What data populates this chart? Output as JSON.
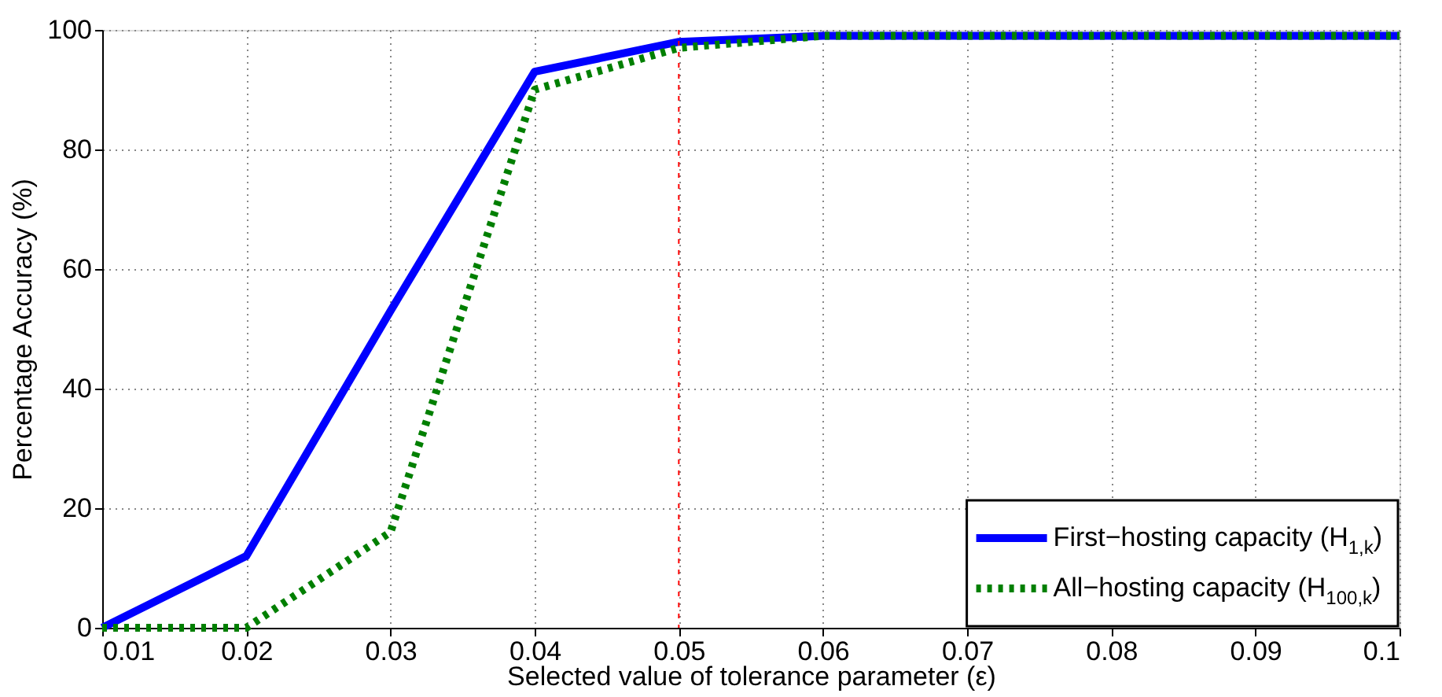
{
  "chart_data": {
    "type": "line",
    "xlabel": "Selected value of tolerance parameter (ε)",
    "ylabel": "Percentage Accuracy (%)",
    "x": [
      0.01,
      0.02,
      0.03,
      0.04,
      0.05,
      0.06,
      0.07,
      0.08,
      0.09,
      0.1
    ],
    "series": [
      {
        "name": "First−hosting capacity (H$_{1,k}$)",
        "color": "#0000ff",
        "line_style": "solid",
        "values": [
          0,
          12,
          53,
          93,
          98,
          99,
          99,
          99,
          99,
          99
        ]
      },
      {
        "name": "All−hosting capacity (H$_{100,k}$)",
        "color": "#007f00",
        "line_style": "dotted",
        "values": [
          0,
          0,
          16,
          90,
          97,
          99,
          99,
          99,
          99,
          99
        ]
      }
    ],
    "xlim": [
      0.01,
      0.1
    ],
    "xticks": [
      0.01,
      0.02,
      0.03,
      0.04,
      0.05,
      0.06,
      0.07,
      0.08,
      0.09,
      {
        "value": 0.1,
        "label": "0.1"
      }
    ],
    "ylim": [
      0,
      100
    ],
    "yticks": [
      0,
      20,
      40,
      60,
      80,
      100
    ],
    "ref_lines": [
      {
        "axis": "x",
        "value": 0.05,
        "color": "#ff0000",
        "line_style": "dotted"
      }
    ],
    "grid": true,
    "legend": "bottom right"
  }
}
